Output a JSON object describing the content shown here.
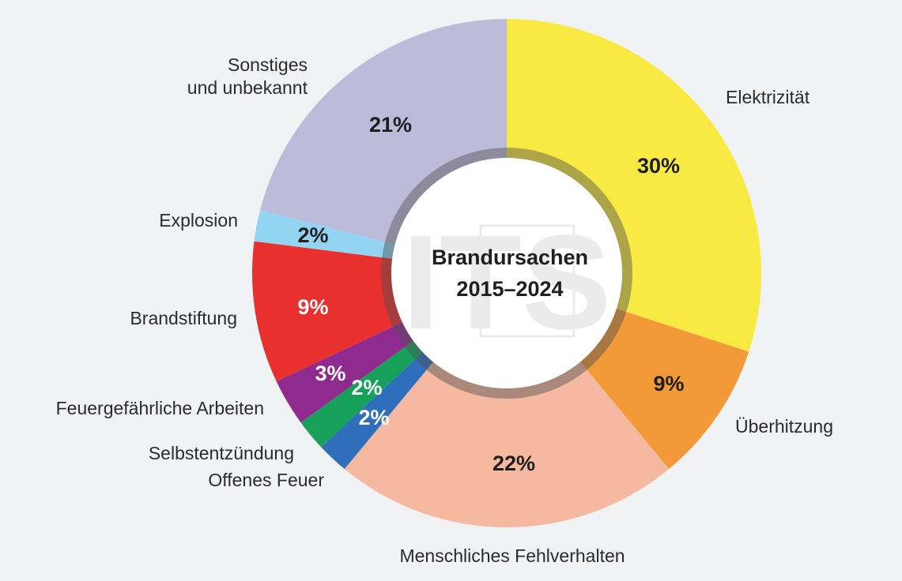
{
  "chart_data": {
    "type": "pie",
    "variant": "donut",
    "center_title": [
      "Brandursachen",
      "2015–2024"
    ],
    "watermark_text": "ITS",
    "slices": [
      {
        "id": "elektrizitaet",
        "label": [
          "Elektrizität"
        ],
        "value": 30,
        "display": "30%",
        "color": "#f9e943",
        "text_color": "#1e1e1e"
      },
      {
        "id": "ueberhitzung",
        "label": [
          "Überhitzung"
        ],
        "value": 9,
        "display": "9%",
        "color": "#f29a38",
        "text_color": "#1e1e1e"
      },
      {
        "id": "menschliches-fehlverhalten",
        "label": [
          "Menschliches Fehlverhalten"
        ],
        "value": 22,
        "display": "22%",
        "color": "#f5b8a0",
        "text_color": "#1e1e1e"
      },
      {
        "id": "offenes-feuer",
        "label": [
          "Offenes Feuer"
        ],
        "value": 2,
        "display": "2%",
        "color": "#2f6ebb",
        "text_color": "#ffffff"
      },
      {
        "id": "selbstentzuendung",
        "label": [
          "Selbstentzündung"
        ],
        "value": 2,
        "display": "2%",
        "color": "#16a05a",
        "text_color": "#ffffff"
      },
      {
        "id": "feuergefaehrliche-arbeiten",
        "label": [
          "Feuergefährliche Arbeiten"
        ],
        "value": 3,
        "display": "3%",
        "color": "#8f2a8f",
        "text_color": "#ffffff"
      },
      {
        "id": "brandstiftung",
        "label": [
          "Brandstiftung"
        ],
        "value": 9,
        "display": "9%",
        "color": "#e8302e",
        "text_color": "#ffffff"
      },
      {
        "id": "explosion",
        "label": [
          "Explosion"
        ],
        "value": 2,
        "display": "2%",
        "color": "#92d4f1",
        "text_color": "#1e1e1e"
      },
      {
        "id": "sonstiges",
        "label": [
          "Sonstiges",
          "und unbekannt"
        ],
        "value": 21,
        "display": "21%",
        "color": "#bdbbda",
        "text_color": "#1e1e1e"
      }
    ]
  }
}
